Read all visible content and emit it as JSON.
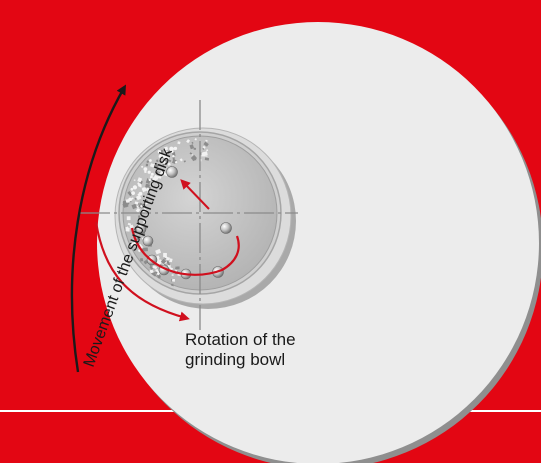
{
  "diagram": {
    "labels": {
      "supporting_disk": "Movement of the supporting disk",
      "bowl_rotation_line1": "Rotation of the",
      "bowl_rotation_line2": "grinding bowl"
    },
    "colors": {
      "background_red": "#e30613",
      "supporting_disk": "#ececec",
      "disk_shadow": "#9a9a9a",
      "bowl_rim": "#d9d9d9",
      "bowl_interior": "#c2c2c2",
      "arrow_red": "#d0101e",
      "arrow_black": "#1a1a1a",
      "axis_lines": "#8a8a8a"
    }
  }
}
